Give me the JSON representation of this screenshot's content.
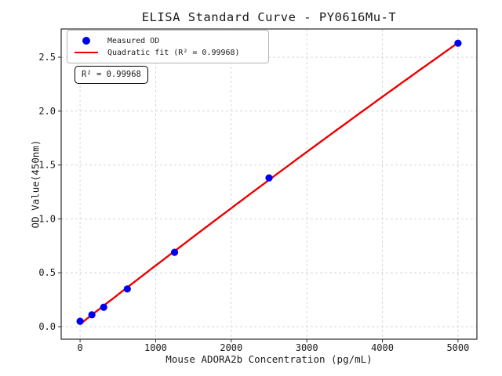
{
  "chart_data": {
    "type": "scatter",
    "title": "ELISA Standard Curve - PY0616Mu-T",
    "xlabel": "Mouse ADORA2b Concentration (pg/mL)",
    "ylabel": "OD Value(450nm)",
    "annotation": "R² = 0.99968",
    "r_squared_text": "R² = 0.99968",
    "grid": true,
    "grid_color": "#d4d4d4",
    "spine_color": "#2a2a2a",
    "legend_position": "upper-left",
    "xlim": [
      -250,
      5250
    ],
    "ylim": [
      -0.116,
      2.762
    ],
    "x_ticks": [
      0,
      1000,
      2000,
      3000,
      4000,
      5000
    ],
    "x_tick_labels": [
      "0",
      "1000",
      "2000",
      "3000",
      "4000",
      "5000"
    ],
    "y_ticks": [
      0,
      0.5,
      1,
      1.5,
      2,
      2.5
    ],
    "y_tick_labels": [
      "0.0",
      "0.5",
      "1.0",
      "1.5",
      "2.0",
      "2.5"
    ],
    "series": [
      {
        "name": "Measured OD",
        "kind": "scatter",
        "color": "#0000f0",
        "x": [
          0,
          156.25,
          312.5,
          625,
          1250,
          2500,
          5000
        ],
        "y": [
          0.05,
          0.11,
          0.18,
          0.35,
          0.69,
          1.38,
          2.63
        ]
      },
      {
        "name": "Quadratic fit (R² = 0.99968)",
        "kind": "quadratic-fit",
        "color": "#ee0000",
        "r_squared": 0.99968
      }
    ]
  }
}
